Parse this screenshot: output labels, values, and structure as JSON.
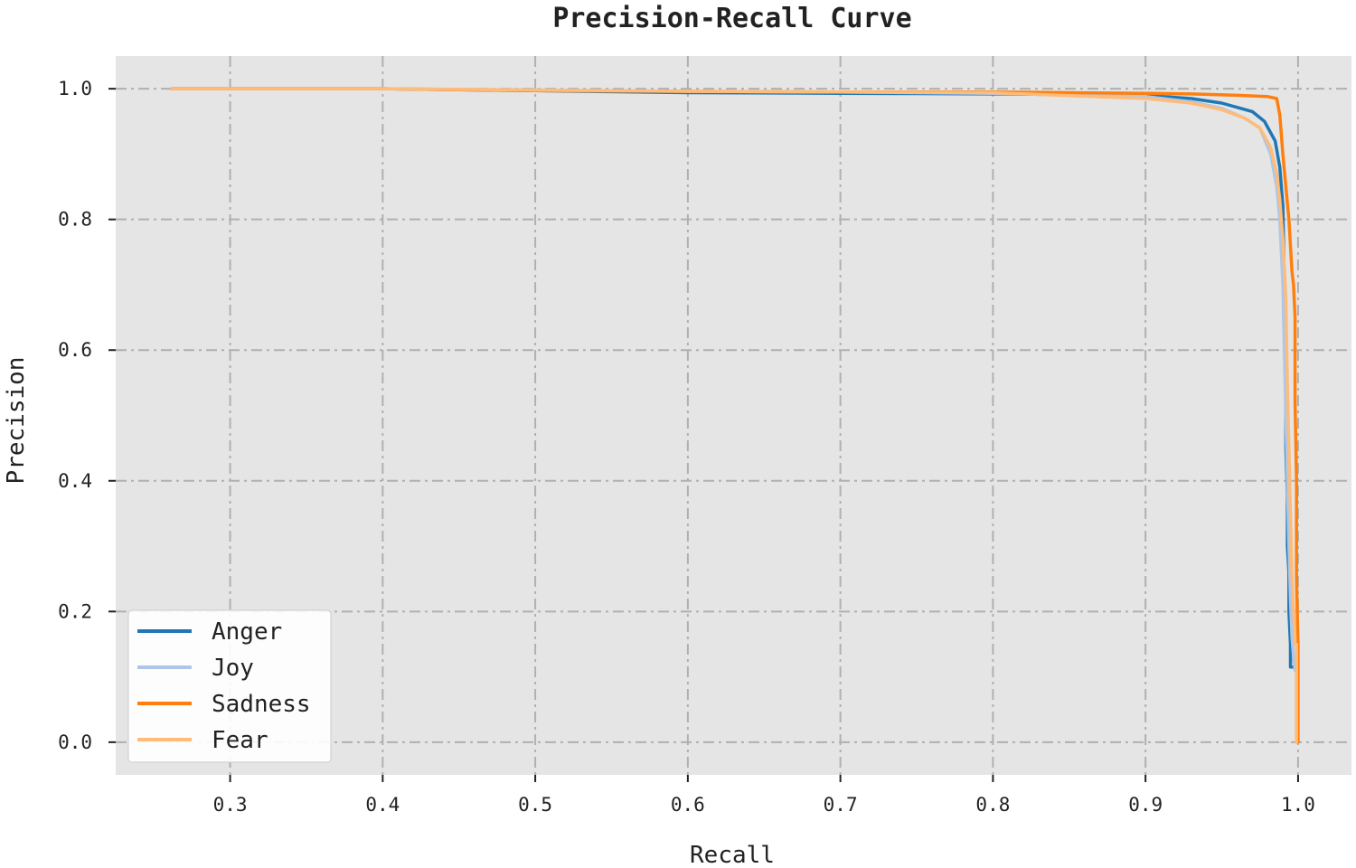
{
  "chart_data": {
    "type": "line",
    "title": "Precision-Recall Curve",
    "xlabel": "Recall",
    "ylabel": "Precision",
    "xlim": [
      0.225,
      1.035
    ],
    "ylim": [
      -0.05,
      1.05
    ],
    "xticks": [
      0.3,
      0.4,
      0.5,
      0.6,
      0.7,
      0.8,
      0.9,
      1.0
    ],
    "xtick_labels": [
      "0.3",
      "0.4",
      "0.5",
      "0.6",
      "0.7",
      "0.8",
      "0.9",
      "1.0"
    ],
    "yticks": [
      0.0,
      0.2,
      0.4,
      0.6,
      0.8,
      1.0
    ],
    "ytick_labels": [
      "0.0",
      "0.2",
      "0.4",
      "0.6",
      "0.8",
      "1.0"
    ],
    "grid": true,
    "legend_position": "bottom-left",
    "background": "#e5e5e5",
    "grid_color": "#b0b0b0",
    "series": [
      {
        "name": "Anger",
        "color": "#1f77b4",
        "x": [
          0.262,
          0.3,
          0.4,
          0.5,
          0.6,
          0.7,
          0.8,
          0.9,
          0.93,
          0.95,
          0.97,
          0.978,
          0.985,
          0.988,
          0.99,
          0.991,
          0.992,
          0.992,
          0.993,
          0.993,
          0.994,
          0.994,
          0.995,
          0.995,
          0.998
        ],
        "y": [
          1.0,
          1.0,
          1.0,
          0.997,
          0.994,
          0.993,
          0.992,
          0.99,
          0.985,
          0.978,
          0.965,
          0.95,
          0.92,
          0.88,
          0.82,
          0.7,
          0.55,
          0.45,
          0.38,
          0.3,
          0.26,
          0.2,
          0.15,
          0.115,
          0.115
        ]
      },
      {
        "name": "Joy",
        "color": "#aec7e8",
        "x": [
          0.262,
          0.3,
          0.4,
          0.5,
          0.6,
          0.7,
          0.8,
          0.9,
          0.93,
          0.95,
          0.965,
          0.975,
          0.982,
          0.986,
          0.988,
          0.99,
          0.991,
          0.992,
          0.993,
          0.994,
          0.995,
          0.996,
          0.997,
          0.998
        ],
        "y": [
          1.0,
          1.0,
          1.0,
          0.998,
          0.996,
          0.995,
          0.993,
          0.988,
          0.98,
          0.97,
          0.955,
          0.94,
          0.9,
          0.85,
          0.8,
          0.7,
          0.6,
          0.5,
          0.4,
          0.3,
          0.22,
          0.16,
          0.13,
          0.11
        ]
      },
      {
        "name": "Sadness",
        "color": "#ff7f0e",
        "x": [
          0.262,
          0.3,
          0.4,
          0.5,
          0.6,
          0.7,
          0.8,
          0.9,
          0.93,
          0.96,
          0.98,
          0.986,
          0.988,
          0.99,
          0.992,
          0.994,
          0.996,
          0.997,
          0.998,
          0.998,
          0.999,
          0.999,
          1.0,
          1.0
        ],
        "y": [
          1.0,
          1.0,
          1.0,
          0.997,
          0.996,
          0.995,
          0.995,
          0.993,
          0.992,
          0.99,
          0.988,
          0.985,
          0.96,
          0.9,
          0.85,
          0.8,
          0.72,
          0.7,
          0.65,
          0.52,
          0.4,
          0.25,
          0.15,
          0.0
        ]
      },
      {
        "name": "Fear",
        "color": "#ffbb78",
        "x": [
          0.262,
          0.3,
          0.4,
          0.5,
          0.6,
          0.7,
          0.8,
          0.9,
          0.93,
          0.95,
          0.965,
          0.975,
          0.982,
          0.986,
          0.988,
          0.99,
          0.992,
          0.993,
          0.994,
          0.995,
          0.996,
          0.997,
          0.998,
          0.998,
          0.999,
          0.999
        ],
        "y": [
          1.0,
          1.0,
          1.0,
          0.998,
          0.996,
          0.995,
          0.994,
          0.985,
          0.978,
          0.968,
          0.955,
          0.94,
          0.91,
          0.87,
          0.83,
          0.77,
          0.68,
          0.55,
          0.45,
          0.35,
          0.25,
          0.2,
          0.16,
          0.15,
          0.15,
          0.0
        ]
      }
    ]
  }
}
